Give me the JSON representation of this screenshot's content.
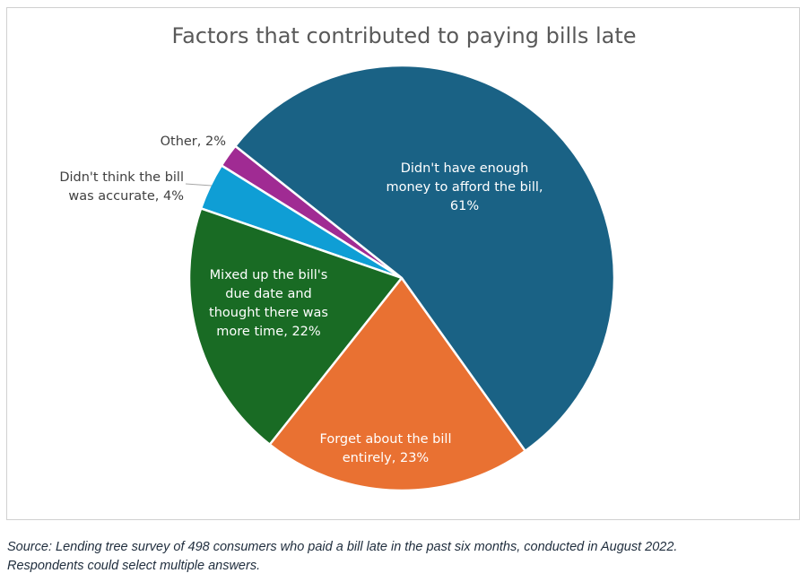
{
  "chart_data": {
    "type": "pie",
    "title": "Factors that contributed to paying bills late",
    "slices": [
      {
        "label": "Didn't have enough money to afford the bill",
        "value": 61,
        "data_label": "Didn't have enough money to afford the bill, 61%",
        "color": "#1a6285"
      },
      {
        "label": "Forget about the bill entirely",
        "value": 23,
        "data_label": "Forget about the bill entirely, 23%",
        "color": "#e97132"
      },
      {
        "label": "Mixed up the bill's due date and thought there was more time",
        "value": 22,
        "data_label": "Mixed up the bill's due date and thought there was more time, 22%",
        "color": "#196b24"
      },
      {
        "label": "Didn't think the bill was accurate",
        "value": 4,
        "data_label": "Didn't think the bill was accurate, 4%",
        "color": "#0f9ed5"
      },
      {
        "label": "Other",
        "value": 2,
        "data_label": "Other, 2%",
        "color": "#a02b93"
      }
    ]
  },
  "footnote": {
    "line1": "Source: Lending tree survey of 498 consumers who paid a bill late in the past six months, conducted in August 2022.",
    "line2": "Respondents could select multiple answers."
  }
}
